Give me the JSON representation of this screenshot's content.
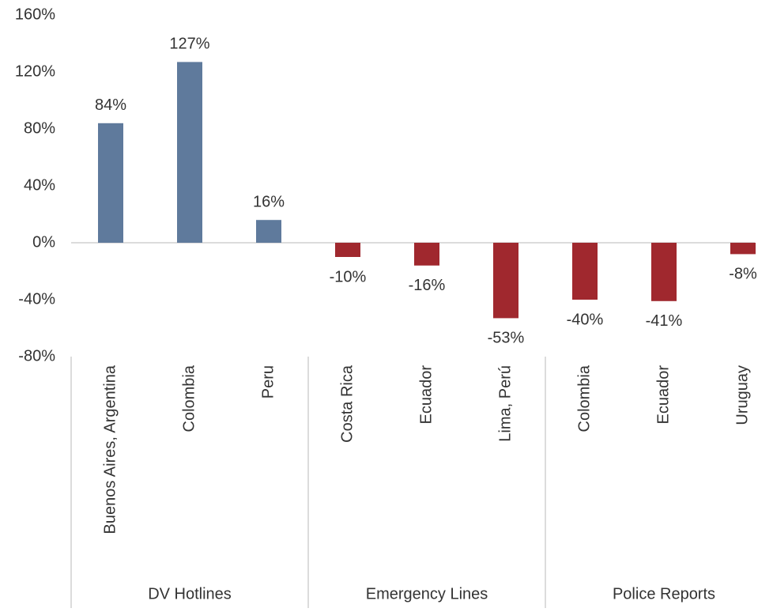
{
  "chart_data": {
    "type": "bar",
    "groups": [
      {
        "name": "DV Hotlines",
        "categories": [
          "Buenos Aires, Argentina",
          "Colombia",
          "Peru"
        ]
      },
      {
        "name": "Emergency Lines",
        "categories": [
          "Costa Rica",
          "Ecuador",
          "Lima, Perú"
        ]
      },
      {
        "name": "Police Reports",
        "categories": [
          "Colombia",
          "Ecuador",
          "Uruguay"
        ]
      }
    ],
    "values": [
      84,
      127,
      16,
      -10,
      -16,
      -53,
      -40,
      -41,
      -8
    ],
    "value_labels": [
      "84%",
      "127%",
      "16%",
      "-10%",
      "-16%",
      "-53%",
      "-40%",
      "-41%",
      "-8%"
    ],
    "color_positive": "#5f7a9c",
    "color_negative": "#a0282e",
    "ylim": [
      -80,
      160
    ],
    "yticks": [
      {
        "value": -80,
        "label": "-80%"
      },
      {
        "value": -40,
        "label": "-40%"
      },
      {
        "value": 0,
        "label": "0%"
      },
      {
        "value": 40,
        "label": "40%"
      },
      {
        "value": 80,
        "label": "80%"
      },
      {
        "value": 120,
        "label": "120%"
      },
      {
        "value": 160,
        "label": "160%"
      }
    ],
    "grid": false
  }
}
